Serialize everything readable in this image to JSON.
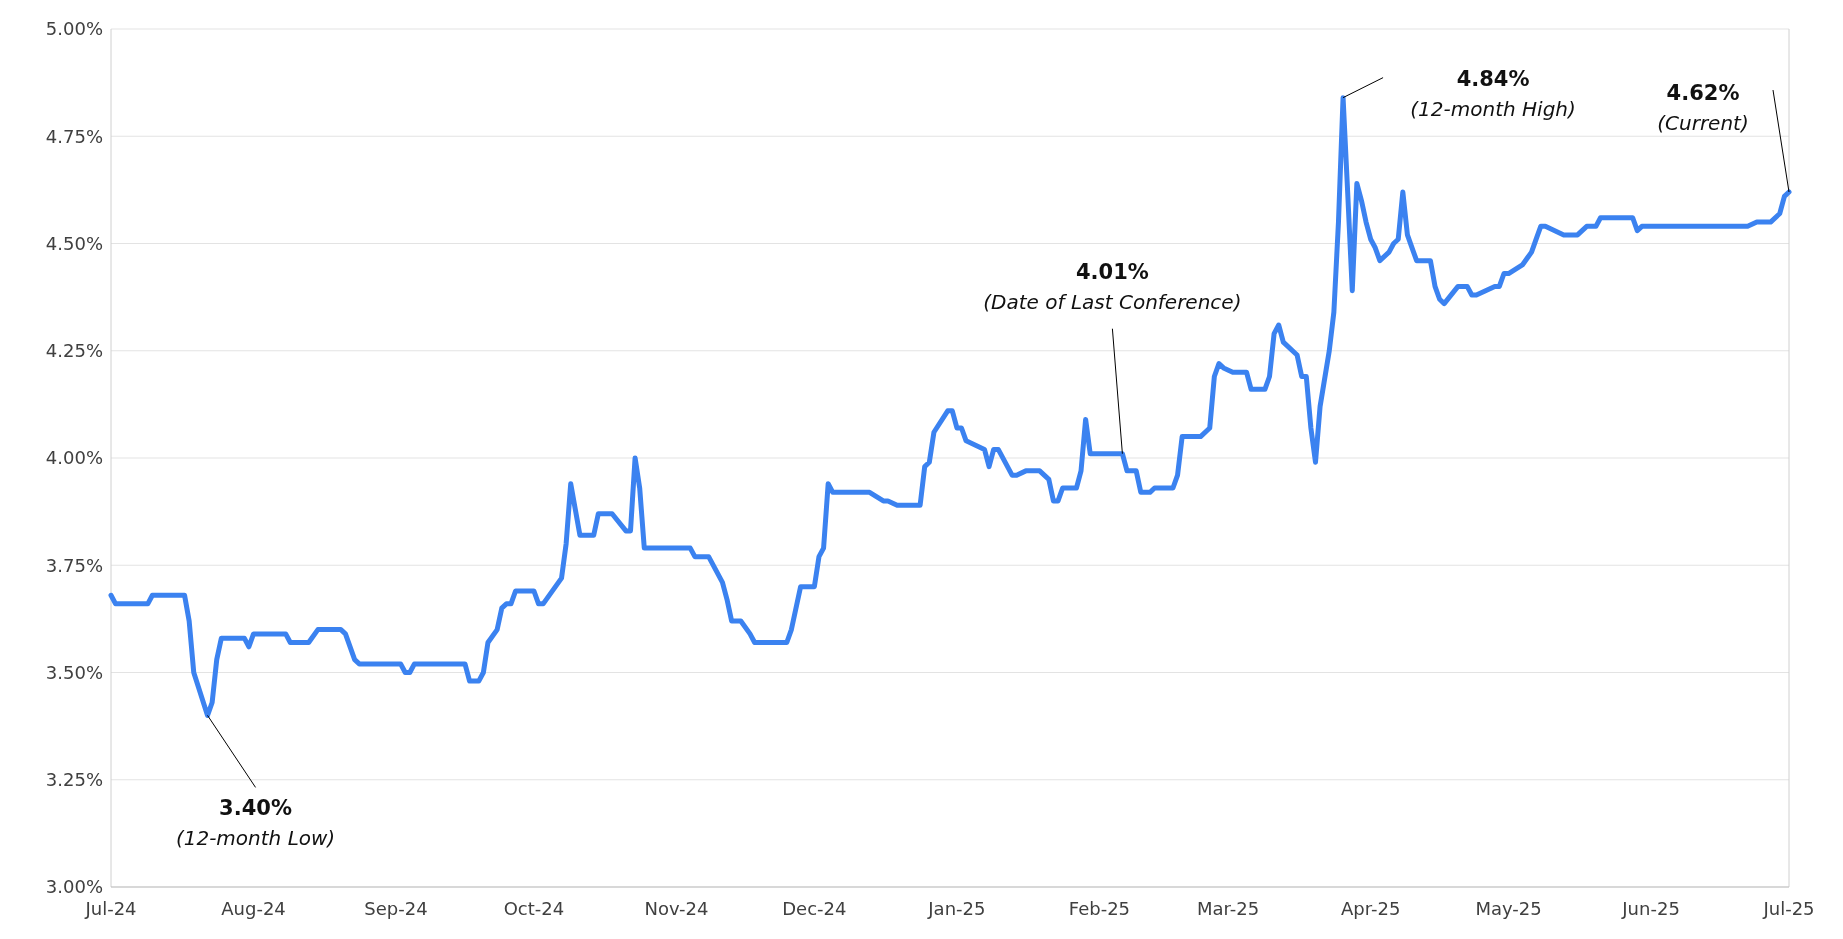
{
  "chart_data": {
    "type": "line",
    "xlim": [
      "2024-07-01",
      "2025-07-01"
    ],
    "xticks": [
      {
        "value": "2024-07-01",
        "label": "Jul-24"
      },
      {
        "value": "2024-08-01",
        "label": "Aug-24"
      },
      {
        "value": "2024-09-01",
        "label": "Sep-24"
      },
      {
        "value": "2024-10-01",
        "label": "Oct-24"
      },
      {
        "value": "2024-11-01",
        "label": "Nov-24"
      },
      {
        "value": "2024-12-01",
        "label": "Dec-24"
      },
      {
        "value": "2025-01-01",
        "label": "Jan-25"
      },
      {
        "value": "2025-02-01",
        "label": "Feb-25"
      },
      {
        "value": "2025-03-01",
        "label": "Mar-25"
      },
      {
        "value": "2025-04-01",
        "label": "Apr-25"
      },
      {
        "value": "2025-05-01",
        "label": "May-25"
      },
      {
        "value": "2025-06-01",
        "label": "Jun-25"
      },
      {
        "value": "2025-07-01",
        "label": "Jul-25"
      }
    ],
    "ylim": [
      3,
      5
    ],
    "yticks": [
      {
        "value": 3,
        "label": "3.00%"
      },
      {
        "value": 3.25,
        "label": "3.25%"
      },
      {
        "value": 3.5,
        "label": "3.50%"
      },
      {
        "value": 3.75,
        "label": "3.75%"
      },
      {
        "value": 4,
        "label": "4.00%"
      },
      {
        "value": 4.25,
        "label": "4.25%"
      },
      {
        "value": 4.5,
        "label": "4.50%"
      },
      {
        "value": 4.75,
        "label": "4.75%"
      },
      {
        "value": 5,
        "label": "5.00%"
      }
    ],
    "grid": "y",
    "marker": "none",
    "line_style": "solid",
    "x": [
      "2024-07-01",
      "2024-07-02",
      "2024-07-09",
      "2024-07-10",
      "2024-07-17",
      "2024-07-18",
      "2024-07-19",
      "2024-07-22",
      "2024-07-23",
      "2024-07-24",
      "2024-07-25",
      "2024-07-30",
      "2024-07-31",
      "2024-08-01",
      "2024-08-08",
      "2024-08-09",
      "2024-08-13",
      "2024-08-15",
      "2024-08-20",
      "2024-08-21",
      "2024-08-23",
      "2024-08-24",
      "2024-09-02",
      "2024-09-03",
      "2024-09-04",
      "2024-09-05",
      "2024-09-16",
      "2024-09-17",
      "2024-09-19",
      "2024-09-20",
      "2024-09-21",
      "2024-09-23",
      "2024-09-24",
      "2024-09-25",
      "2024-09-26",
      "2024-09-27",
      "2024-10-01",
      "2024-10-02",
      "2024-10-03",
      "2024-10-07",
      "2024-10-08",
      "2024-10-09",
      "2024-10-11",
      "2024-10-14",
      "2024-10-15",
      "2024-10-18",
      "2024-10-21",
      "2024-10-22",
      "2024-10-23",
      "2024-10-24",
      "2024-10-25",
      "2024-11-04",
      "2024-11-05",
      "2024-11-08",
      "2024-11-11",
      "2024-11-12",
      "2024-11-13",
      "2024-11-15",
      "2024-11-17",
      "2024-11-18",
      "2024-11-25",
      "2024-11-26",
      "2024-11-28",
      "2024-12-01",
      "2024-12-02",
      "2024-12-03",
      "2024-12-04",
      "2024-12-05",
      "2024-12-13",
      "2024-12-16",
      "2024-12-17",
      "2024-12-19",
      "2024-12-24",
      "2024-12-25",
      "2024-12-26",
      "2024-12-27",
      "2024-12-30",
      "2024-12-31",
      "2025-01-01",
      "2025-01-02",
      "2025-01-03",
      "2025-01-07",
      "2025-01-08",
      "2025-01-09",
      "2025-01-10",
      "2025-01-13",
      "2025-01-14",
      "2025-01-16",
      "2025-01-19",
      "2025-01-21",
      "2025-01-22",
      "2025-01-23",
      "2025-01-24",
      "2025-01-27",
      "2025-01-28",
      "2025-01-29",
      "2025-01-30",
      "2025-02-06",
      "2025-02-07",
      "2025-02-09",
      "2025-02-10",
      "2025-02-12",
      "2025-02-13",
      "2025-02-17",
      "2025-02-18",
      "2025-02-19",
      "2025-02-23",
      "2025-02-25",
      "2025-02-26",
      "2025-02-27",
      "2025-02-28",
      "2025-03-02",
      "2025-03-05",
      "2025-03-06",
      "2025-03-09",
      "2025-03-10",
      "2025-03-11",
      "2025-03-12",
      "2025-03-13",
      "2025-03-16",
      "2025-03-17",
      "2025-03-18",
      "2025-03-19",
      "2025-03-20",
      "2025-03-21",
      "2025-03-23",
      "2025-03-24",
      "2025-03-25",
      "2025-03-26",
      "2025-03-27",
      "2025-03-28",
      "2025-03-29",
      "2025-03-30",
      "2025-03-31",
      "2025-04-01",
      "2025-04-02",
      "2025-04-03",
      "2025-04-05",
      "2025-04-06",
      "2025-04-07",
      "2025-04-08",
      "2025-04-09",
      "2025-04-10",
      "2025-04-11",
      "2025-04-14",
      "2025-04-15",
      "2025-04-16",
      "2025-04-17",
      "2025-04-20",
      "2025-04-22",
      "2025-04-23",
      "2025-04-24",
      "2025-04-28",
      "2025-04-29",
      "2025-04-30",
      "2025-05-01",
      "2025-05-04",
      "2025-05-06",
      "2025-05-07",
      "2025-05-08",
      "2025-05-09",
      "2025-05-13",
      "2025-05-16",
      "2025-05-18",
      "2025-05-20",
      "2025-05-21",
      "2025-05-28",
      "2025-05-29",
      "2025-05-30",
      "2025-06-22",
      "2025-06-24",
      "2025-06-27",
      "2025-06-29",
      "2025-06-30",
      "2025-07-01"
    ],
    "series": [
      {
        "color": "#3b82f0",
        "values": [
          3.68,
          3.66,
          3.66,
          3.68,
          3.68,
          3.62,
          3.5,
          3.4,
          3.43,
          3.53,
          3.58,
          3.58,
          3.56,
          3.59,
          3.59,
          3.57,
          3.57,
          3.6,
          3.6,
          3.59,
          3.53,
          3.52,
          3.52,
          3.5,
          3.5,
          3.52,
          3.52,
          3.48,
          3.48,
          3.5,
          3.57,
          3.6,
          3.65,
          3.66,
          3.66,
          3.69,
          3.69,
          3.66,
          3.66,
          3.72,
          3.8,
          3.94,
          3.82,
          3.82,
          3.87,
          3.87,
          3.83,
          3.83,
          4.0,
          3.93,
          3.79,
          3.79,
          3.77,
          3.77,
          3.71,
          3.67,
          3.62,
          3.62,
          3.59,
          3.57,
          3.57,
          3.6,
          3.7,
          3.7,
          3.77,
          3.79,
          3.94,
          3.92,
          3.92,
          3.9,
          3.9,
          3.89,
          3.89,
          3.98,
          3.99,
          4.06,
          4.11,
          4.11,
          4.07,
          4.07,
          4.04,
          4.02,
          3.98,
          4.02,
          4.02,
          3.96,
          3.96,
          3.97,
          3.97,
          3.95,
          3.9,
          3.9,
          3.93,
          3.93,
          3.97,
          4.09,
          4.01,
          4.01,
          3.97,
          3.97,
          3.92,
          3.92,
          3.93,
          3.93,
          3.96,
          4.05,
          4.05,
          4.07,
          4.19,
          4.22,
          4.21,
          4.2,
          4.2,
          4.16,
          4.16,
          4.19,
          4.29,
          4.31,
          4.27,
          4.24,
          4.19,
          4.19,
          4.07,
          3.99,
          4.12,
          4.25,
          4.34,
          4.55,
          4.84,
          4.62,
          4.39,
          4.64,
          4.6,
          4.55,
          4.51,
          4.49,
          4.46,
          4.48,
          4.5,
          4.51,
          4.62,
          4.52,
          4.49,
          4.46,
          4.46,
          4.4,
          4.37,
          4.36,
          4.4,
          4.4,
          4.38,
          4.38,
          4.4,
          4.4,
          4.43,
          4.43,
          4.45,
          4.48,
          4.51,
          4.54,
          4.54,
          4.52,
          4.52,
          4.54,
          4.54,
          4.56,
          4.56,
          4.53,
          4.54,
          4.54,
          4.55,
          4.55,
          4.57,
          4.61,
          4.62
        ]
      }
    ],
    "annotations": [
      {
        "text": "3.40%\n(12-month Low)",
        "x": "2024-07-22",
        "y": 3.4
      },
      {
        "text": "4.01%\n(Date of Last Conference)",
        "x": "2025-02-06",
        "y": 4.01
      },
      {
        "text": "4.84%\n(12-month High)",
        "x": "2025-03-26",
        "y": 4.84
      },
      {
        "text": "4.62%\n(Current)",
        "x": "2025-07-01",
        "y": 4.62
      }
    ]
  }
}
